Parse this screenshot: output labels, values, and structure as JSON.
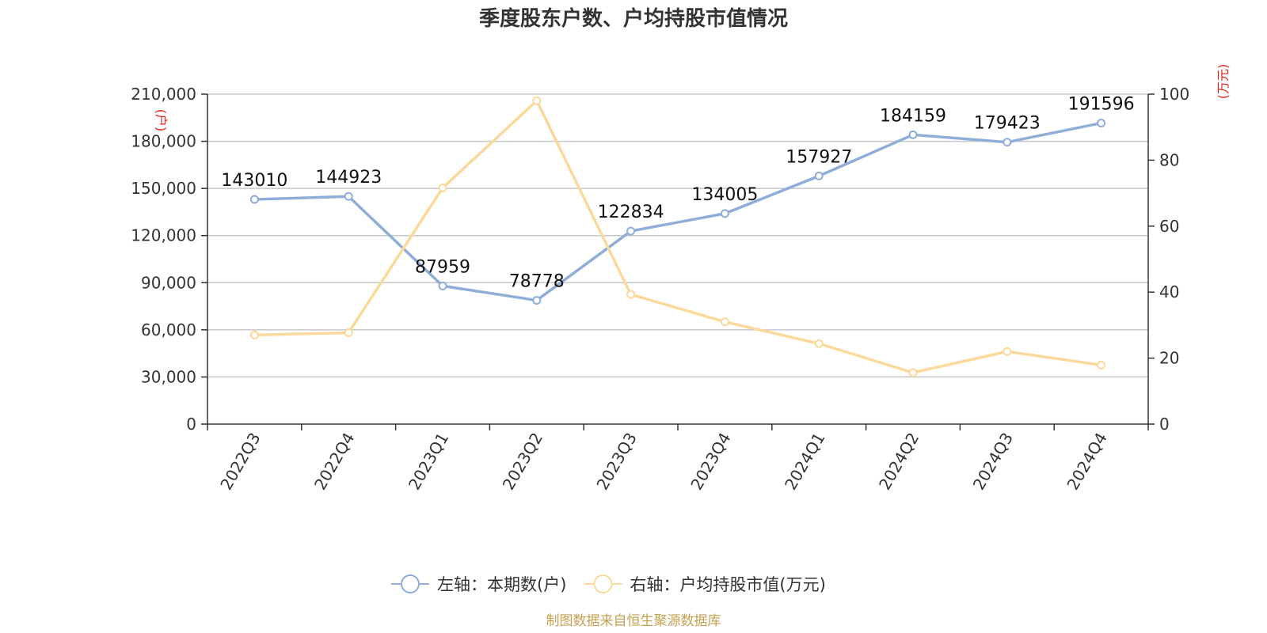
{
  "chart_data": {
    "type": "line",
    "title": "季度股东户数、户均持股市值情况",
    "categories": [
      "2022Q3",
      "2022Q4",
      "2023Q1",
      "2023Q2",
      "2023Q3",
      "2023Q4",
      "2024Q1",
      "2024Q2",
      "2024Q3",
      "2024Q4"
    ],
    "left_axis": {
      "unit": "(户)",
      "ylim": [
        0,
        210000
      ],
      "ticks": [
        0,
        30000,
        60000,
        90000,
        120000,
        150000,
        180000,
        210000
      ],
      "tick_labels": [
        "0",
        "30,000",
        "60,000",
        "90,000",
        "120,000",
        "150,000",
        "180,000",
        "210,000"
      ]
    },
    "right_axis": {
      "unit": "(万元)",
      "ylim": [
        0,
        100
      ],
      "ticks": [
        0,
        20,
        40,
        60,
        80,
        100
      ],
      "tick_labels": [
        "0",
        "20",
        "40",
        "60",
        "80",
        "100"
      ]
    },
    "series": [
      {
        "name": "左轴：本期数(户)",
        "axis": "left",
        "color": "#8eadd8",
        "values": [
          143010,
          144923,
          87959,
          78778,
          122834,
          134005,
          157927,
          184159,
          179423,
          191596
        ],
        "labels": [
          "143010",
          "144923",
          "87959",
          "78778",
          "122834",
          "134005",
          "157927",
          "184159",
          "179423",
          "191596"
        ]
      },
      {
        "name": "右轴：户均持股市值(万元)",
        "axis": "right",
        "color": "#fbd99a",
        "values": [
          27.0,
          27.7,
          71.6,
          98.0,
          39.3,
          31.0,
          24.4,
          15.6,
          22.0,
          17.9
        ]
      }
    ],
    "grid": true,
    "legend_position": "bottom-center"
  },
  "footer": {
    "source": "制图数据来自恒生聚源数据库"
  }
}
